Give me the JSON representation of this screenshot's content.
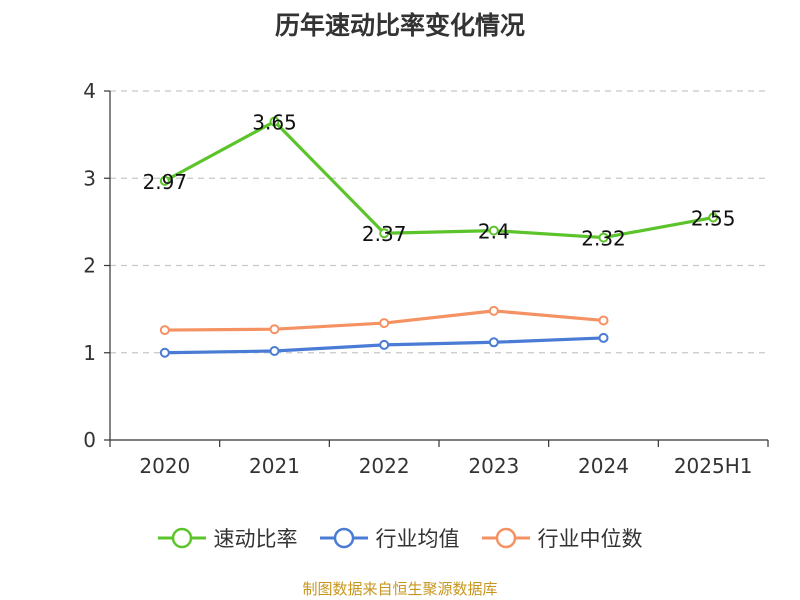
{
  "chart_data": {
    "type": "line",
    "title": "历年速动比率变化情况",
    "categories": [
      "2020",
      "2021",
      "2022",
      "2023",
      "2024",
      "2025H1"
    ],
    "ylim": [
      0,
      4
    ],
    "yticks": [
      0,
      1,
      2,
      3,
      4
    ],
    "grid": true,
    "legend_position": "bottom",
    "series": [
      {
        "name": "速动比率",
        "color": "#5cc42b",
        "values": [
          2.97,
          3.65,
          2.37,
          2.4,
          2.32,
          2.55
        ],
        "labels": [
          "2.97",
          "3.65",
          "2.37",
          "2.4",
          "2.32",
          "2.55"
        ],
        "show_labels": true
      },
      {
        "name": "行业均值",
        "color": "#4a7bd5",
        "values": [
          1.0,
          1.02,
          1.09,
          1.12,
          1.17,
          null
        ],
        "show_labels": false
      },
      {
        "name": "行业中位数",
        "color": "#f59263",
        "values": [
          1.26,
          1.27,
          1.34,
          1.48,
          1.37,
          null
        ],
        "show_labels": false
      }
    ]
  },
  "source_note": "制图数据来自恒生聚源数据库"
}
